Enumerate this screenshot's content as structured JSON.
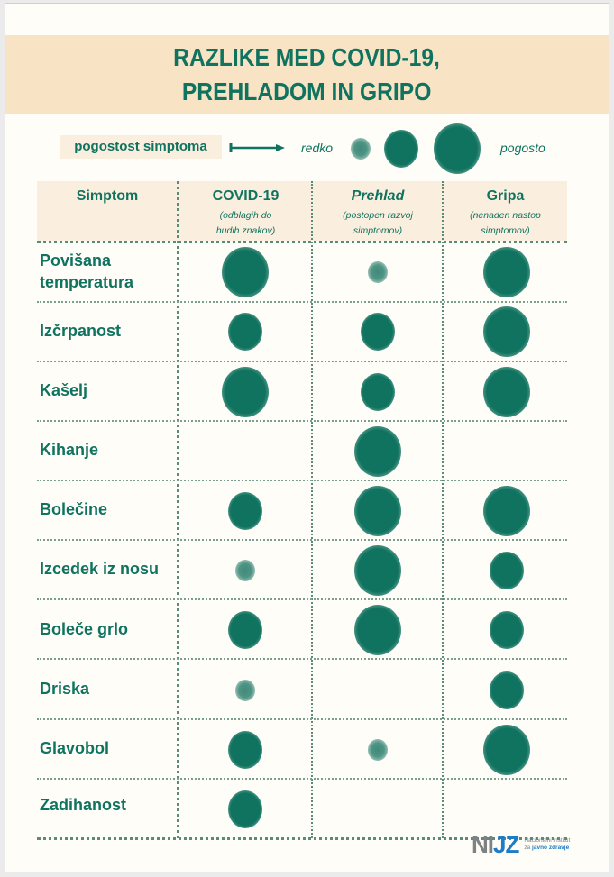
{
  "title": {
    "line1": "RAZLIKE MED COVID-19,",
    "line2": "PREHLADOM IN GRIPO"
  },
  "legend": {
    "label": "pogostost simptoma",
    "low": "redko",
    "high": "pogosto",
    "sizes": [
      "small",
      "medium",
      "large"
    ]
  },
  "table": {
    "columns": [
      {
        "label": "Simptom",
        "sub": ""
      },
      {
        "label": "COVID-19",
        "sub1": "(odblagih do",
        "sub2": "hudih znakov)"
      },
      {
        "label": "Prehlad",
        "sub1": "(postopen razvoj",
        "sub2": "simptomov)"
      },
      {
        "label": "Gripa",
        "sub1": "(nenaden nastop",
        "sub2": "simptomov)"
      }
    ],
    "rows": [
      {
        "label1": "Povišana",
        "label2": "temperatura",
        "covid": "large",
        "prehlad": "small",
        "gripa": "large"
      },
      {
        "label": "Izčrpanost",
        "covid": "medium",
        "prehlad": "medium",
        "gripa": "large"
      },
      {
        "label": "Kašelj",
        "covid": "large",
        "prehlad": "medium",
        "gripa": "large"
      },
      {
        "label": "Kihanje",
        "covid": "none",
        "prehlad": "large",
        "gripa": "none"
      },
      {
        "label": "Bolečine",
        "covid": "medium",
        "prehlad": "large",
        "gripa": "large"
      },
      {
        "label": "Izcedek iz nosu",
        "covid": "small",
        "prehlad": "large",
        "gripa": "medium"
      },
      {
        "label": "Boleče grlo",
        "covid": "medium",
        "prehlad": "large",
        "gripa": "medium"
      },
      {
        "label": "Driska",
        "covid": "small",
        "prehlad": "none",
        "gripa": "medium"
      },
      {
        "label": "Glavobol",
        "covid": "medium",
        "prehlad": "small",
        "gripa": "large"
      },
      {
        "label": "Zadihanost",
        "covid": "medium",
        "prehlad": "none",
        "gripa": "none"
      }
    ]
  },
  "logo": {
    "mark_n": "NI",
    "mark_j": "J",
    "mark_z": "Z",
    "line1": "Nacionalni inštitut",
    "line2a": "za ",
    "line2b": "javno zdravje"
  },
  "colors": {
    "green": "#10735f",
    "title_band": "#f9e3c5",
    "header_band": "#faeede",
    "background": "#fefdf8"
  },
  "chart_data": {
    "type": "table",
    "title": "RAZLIKE MED COVID-19, PREHLADOM IN GRIPO",
    "legend": {
      "label": "pogostost simptoma",
      "scale": [
        "redko",
        "pogosto"
      ],
      "levels": {
        "small": 1,
        "medium": 2,
        "large": 3,
        "none": 0
      }
    },
    "categories": [
      "Povišana temperatura",
      "Izčrpanost",
      "Kašelj",
      "Kihanje",
      "Bolečine",
      "Izcedek iz nosu",
      "Boleče grlo",
      "Driska",
      "Glavobol",
      "Zadihanost"
    ],
    "series": [
      {
        "name": "COVID-19",
        "values": [
          3,
          2,
          3,
          0,
          2,
          1,
          2,
          1,
          2,
          2
        ]
      },
      {
        "name": "Prehlad",
        "values": [
          1,
          2,
          2,
          3,
          3,
          3,
          3,
          0,
          1,
          0
        ]
      },
      {
        "name": "Gripa",
        "values": [
          3,
          3,
          3,
          0,
          3,
          2,
          2,
          2,
          3,
          0
        ]
      }
    ]
  }
}
